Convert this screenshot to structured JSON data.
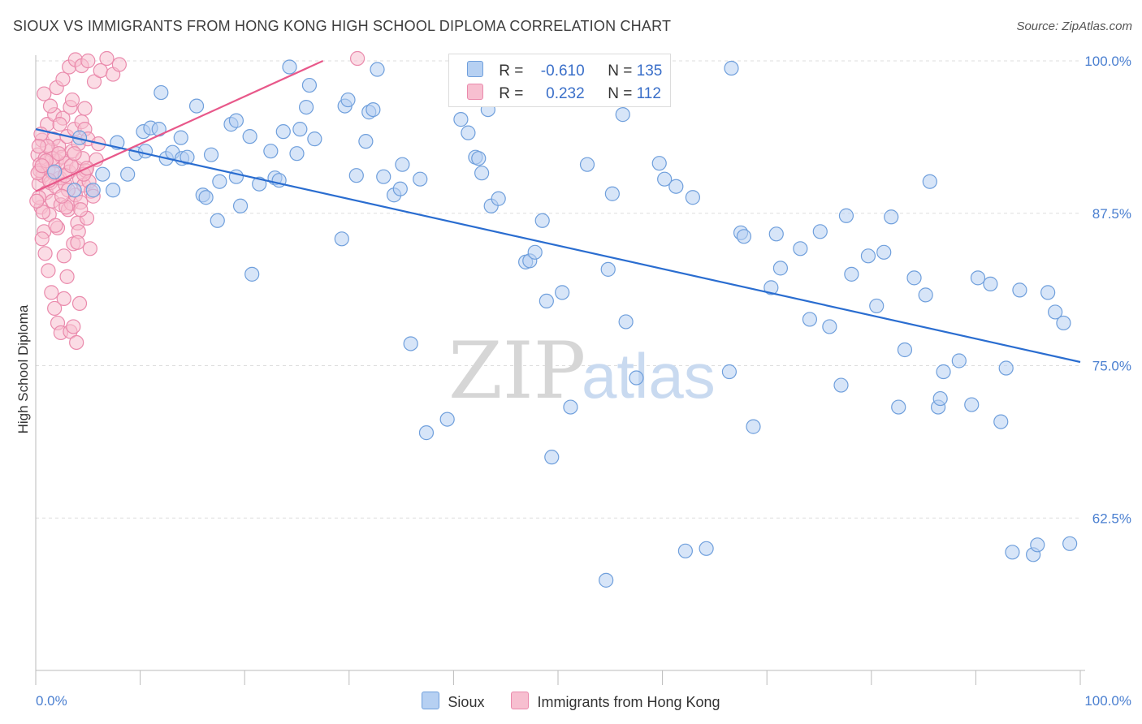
{
  "title": "SIOUX VS IMMIGRANTS FROM HONG KONG HIGH SCHOOL DIPLOMA CORRELATION CHART",
  "source": "Source: ZipAtlas.com",
  "watermark": {
    "zip": "ZIP",
    "atlas": "atlas"
  },
  "colors": {
    "sioux_fill": "#b6d0f2",
    "sioux_stroke": "#6f9fdc",
    "sioux_line": "#2a6dd0",
    "hk_fill": "#f7bfd0",
    "hk_stroke": "#ea8aac",
    "hk_line": "#e8588a",
    "grid": "#dddddd",
    "tick_text": "#4a7fd0"
  },
  "legend": {
    "rows": [
      {
        "r_label": "R =",
        "r_value": "-0.610",
        "n_label": "N =",
        "n_value": "135"
      },
      {
        "r_label": "R =",
        "r_value": "0.232",
        "n_label": "N =",
        "n_value": "112"
      }
    ]
  },
  "bottom_legend": [
    "Sioux",
    "Immigrants from Hong Kong"
  ],
  "chart_data": {
    "type": "scatter",
    "title": "SIOUX VS IMMIGRANTS FROM HONG KONG HIGH SCHOOL DIPLOMA CORRELATION CHART",
    "xlabel": "",
    "ylabel": "High School Diploma",
    "xlim": [
      0,
      100
    ],
    "ylim": [
      50,
      101
    ],
    "x_tick_labels": [
      "0.0%",
      "100.0%"
    ],
    "y_ticks": [
      62.5,
      75.0,
      87.5,
      100.0
    ],
    "y_tick_labels": [
      "62.5%",
      "75.0%",
      "87.5%",
      "100.0%"
    ],
    "grid": true,
    "legend_placement": "top-center",
    "series": [
      {
        "name": "Sioux",
        "r": -0.61,
        "n": 135,
        "trendline": {
          "x": [
            0,
            100
          ],
          "y": [
            94.4,
            75.3
          ]
        },
        "points": [
          [
            1.8,
            90.9
          ],
          [
            3.7,
            89.4
          ],
          [
            4.2,
            93.7
          ],
          [
            5.5,
            89.4
          ],
          [
            6.4,
            90.7
          ],
          [
            7.4,
            89.4
          ],
          [
            7.8,
            93.3
          ],
          [
            8.8,
            90.7
          ],
          [
            9.6,
            92.4
          ],
          [
            10.3,
            94.2
          ],
          [
            10.5,
            92.6
          ],
          [
            11,
            94.5
          ],
          [
            11.8,
            94.4
          ],
          [
            12,
            97.4
          ],
          [
            12.5,
            92.0
          ],
          [
            13.1,
            92.5
          ],
          [
            13.9,
            93.7
          ],
          [
            14,
            92.0
          ],
          [
            14.5,
            92.1
          ],
          [
            15.4,
            96.3
          ],
          [
            16,
            89.0
          ],
          [
            16.3,
            88.8
          ],
          [
            16.8,
            92.3
          ],
          [
            17.4,
            86.9
          ],
          [
            17.6,
            90.1
          ],
          [
            18.7,
            94.8
          ],
          [
            19.2,
            95.1
          ],
          [
            19.2,
            90.5
          ],
          [
            19.6,
            88.1
          ],
          [
            20.5,
            93.8
          ],
          [
            20.7,
            82.5
          ],
          [
            21.4,
            89.9
          ],
          [
            22.5,
            92.6
          ],
          [
            22.9,
            90.4
          ],
          [
            23.3,
            90.2
          ],
          [
            23.7,
            94.2
          ],
          [
            24.3,
            99.5
          ],
          [
            25,
            92.4
          ],
          [
            25.3,
            94.4
          ],
          [
            25.9,
            96.2
          ],
          [
            26.2,
            98.0
          ],
          [
            26.7,
            93.6
          ],
          [
            29.3,
            85.4
          ],
          [
            29.6,
            96.3
          ],
          [
            29.9,
            96.8
          ],
          [
            30.7,
            90.6
          ],
          [
            31.6,
            93.4
          ],
          [
            31.9,
            95.8
          ],
          [
            32.3,
            96.0
          ],
          [
            32.7,
            99.3
          ],
          [
            33.3,
            90.5
          ],
          [
            34.3,
            89.0
          ],
          [
            34.9,
            89.5
          ],
          [
            35.1,
            91.5
          ],
          [
            35.9,
            76.8
          ],
          [
            36.8,
            90.3
          ],
          [
            40.7,
            95.2
          ],
          [
            41.4,
            94.1
          ],
          [
            42.1,
            92.1
          ],
          [
            42.4,
            92.0
          ],
          [
            42.7,
            90.8
          ],
          [
            43.3,
            96.0
          ],
          [
            43.6,
            88.1
          ],
          [
            44.3,
            88.7
          ],
          [
            45.3,
            99.4
          ],
          [
            46.9,
            83.5
          ],
          [
            47.3,
            83.6
          ],
          [
            47.8,
            84.3
          ],
          [
            48.5,
            86.9
          ],
          [
            48.9,
            80.3
          ],
          [
            49.4,
            67.5
          ],
          [
            50.4,
            81.0
          ],
          [
            51.2,
            71.6
          ],
          [
            52.8,
            91.5
          ],
          [
            54.6,
            57.4
          ],
          [
            54.8,
            82.9
          ],
          [
            55.2,
            89.1
          ],
          [
            56.2,
            95.6
          ],
          [
            56.5,
            78.6
          ],
          [
            57.5,
            74.0
          ],
          [
            59.7,
            91.6
          ],
          [
            60.2,
            90.3
          ],
          [
            61.3,
            89.7
          ],
          [
            62.2,
            59.8
          ],
          [
            62.9,
            88.8
          ],
          [
            64.2,
            60.0
          ],
          [
            66.4,
            74.5
          ],
          [
            66.6,
            99.4
          ],
          [
            67.5,
            85.9
          ],
          [
            67.8,
            85.6
          ],
          [
            68.7,
            70.0
          ],
          [
            70.4,
            81.4
          ],
          [
            70.9,
            85.8
          ],
          [
            71.3,
            83.0
          ],
          [
            73.2,
            84.6
          ],
          [
            74.1,
            78.8
          ],
          [
            75.1,
            86.0
          ],
          [
            76.0,
            78.2
          ],
          [
            77.1,
            73.4
          ],
          [
            77.6,
            87.3
          ],
          [
            78.1,
            82.5
          ],
          [
            79.7,
            84.0
          ],
          [
            80.5,
            79.9
          ],
          [
            81.2,
            84.3
          ],
          [
            81.9,
            87.2
          ],
          [
            82.6,
            71.6
          ],
          [
            83.2,
            76.3
          ],
          [
            84.1,
            82.2
          ],
          [
            85.2,
            80.8
          ],
          [
            85.6,
            90.1
          ],
          [
            86.4,
            71.6
          ],
          [
            86.6,
            72.3
          ],
          [
            86.9,
            74.5
          ],
          [
            88.4,
            75.4
          ],
          [
            89.6,
            71.8
          ],
          [
            90.2,
            82.2
          ],
          [
            91.4,
            81.7
          ],
          [
            92.4,
            70.4
          ],
          [
            92.9,
            74.8
          ],
          [
            93.5,
            59.7
          ],
          [
            94.2,
            81.2
          ],
          [
            95.5,
            59.5
          ],
          [
            95.9,
            60.3
          ],
          [
            96.9,
            81.0
          ],
          [
            97.6,
            79.4
          ],
          [
            98.4,
            78.5
          ],
          [
            99.0,
            60.4
          ],
          [
            37.4,
            69.5
          ],
          [
            39.4,
            70.6
          ]
        ]
      },
      {
        "name": "Immigrants from Hong Kong",
        "r": 0.232,
        "n": 112,
        "trendline": {
          "x": [
            0,
            27.5
          ],
          "y": [
            89.3,
            100.0
          ]
        },
        "points": [
          [
            0.2,
            92.3
          ],
          [
            0.3,
            89.9
          ],
          [
            0.4,
            91.5
          ],
          [
            0.5,
            88.0
          ],
          [
            0.6,
            93.5
          ],
          [
            0.7,
            90.6
          ],
          [
            0.8,
            86.0
          ],
          [
            0.9,
            92.0
          ],
          [
            1.0,
            89.2
          ],
          [
            1.1,
            94.8
          ],
          [
            1.2,
            91.1
          ],
          [
            1.3,
            87.4
          ],
          [
            1.4,
            90.0
          ],
          [
            1.5,
            92.7
          ],
          [
            1.6,
            88.5
          ],
          [
            1.7,
            93.6
          ],
          [
            1.8,
            95.6
          ],
          [
            1.9,
            89.7
          ],
          [
            2.0,
            91.8
          ],
          [
            2.1,
            86.3
          ],
          [
            2.2,
            93.0
          ],
          [
            2.3,
            90.4
          ],
          [
            2.4,
            88.2
          ],
          [
            2.5,
            92.1
          ],
          [
            2.6,
            95.3
          ],
          [
            2.7,
            84.0
          ],
          [
            2.8,
            89.9
          ],
          [
            2.9,
            91.6
          ],
          [
            3.0,
            93.8
          ],
          [
            3.1,
            87.8
          ],
          [
            3.2,
            90.9
          ],
          [
            3.3,
            96.2
          ],
          [
            3.4,
            88.3
          ],
          [
            3.5,
            92.6
          ],
          [
            3.6,
            85.0
          ],
          [
            3.7,
            94.4
          ],
          [
            3.8,
            89.0
          ],
          [
            3.9,
            91.2
          ],
          [
            4.0,
            86.7
          ],
          [
            4.1,
            93.2
          ],
          [
            4.2,
            90.3
          ],
          [
            4.3,
            88.4
          ],
          [
            4.4,
            95.0
          ],
          [
            4.5,
            92.0
          ],
          [
            4.6,
            89.8
          ],
          [
            4.7,
            94.4
          ],
          [
            4.8,
            91.0
          ],
          [
            4.9,
            87.1
          ],
          [
            5.0,
            93.6
          ],
          [
            5.1,
            90.1
          ],
          [
            0.3,
            88.8
          ],
          [
            0.6,
            85.4
          ],
          [
            0.9,
            84.2
          ],
          [
            1.2,
            82.8
          ],
          [
            1.5,
            81.0
          ],
          [
            1.8,
            79.7
          ],
          [
            2.1,
            78.5
          ],
          [
            2.4,
            77.7
          ],
          [
            2.7,
            80.5
          ],
          [
            3.0,
            82.3
          ],
          [
            3.3,
            77.8
          ],
          [
            3.6,
            78.2
          ],
          [
            3.9,
            76.9
          ],
          [
            4.2,
            80.1
          ],
          [
            0.8,
            97.3
          ],
          [
            1.4,
            96.3
          ],
          [
            2.0,
            97.8
          ],
          [
            2.6,
            98.5
          ],
          [
            3.2,
            99.5
          ],
          [
            3.8,
            100.1
          ],
          [
            4.4,
            99.6
          ],
          [
            5.0,
            100.0
          ],
          [
            5.6,
            98.3
          ],
          [
            6.2,
            99.2
          ],
          [
            6.8,
            100.2
          ],
          [
            7.4,
            98.9
          ],
          [
            8.0,
            99.7
          ],
          [
            1.1,
            93.0
          ],
          [
            2.3,
            94.8
          ],
          [
            3.5,
            96.8
          ],
          [
            4.7,
            96.1
          ],
          [
            0.5,
            94.0
          ],
          [
            1.7,
            90.8
          ],
          [
            2.9,
            88.0
          ],
          [
            4.1,
            86.0
          ],
          [
            5.3,
            89.3
          ],
          [
            0.4,
            91.0
          ],
          [
            1.6,
            92.0
          ],
          [
            2.8,
            90.6
          ],
          [
            4.0,
            85.1
          ],
          [
            5.2,
            84.6
          ],
          [
            0.7,
            87.6
          ],
          [
            1.9,
            86.5
          ],
          [
            3.1,
            89.4
          ],
          [
            4.3,
            87.8
          ],
          [
            5.5,
            88.9
          ],
          [
            0.2,
            90.8
          ],
          [
            1.0,
            91.8
          ],
          [
            2.2,
            92.4
          ],
          [
            3.4,
            91.4
          ],
          [
            4.6,
            90.7
          ],
          [
            5.8,
            91.9
          ],
          [
            30.8,
            100.2
          ],
          [
            0.1,
            88.5
          ],
          [
            0.3,
            93.0
          ],
          [
            0.6,
            91.4
          ],
          [
            1.3,
            90.2
          ],
          [
            2.5,
            88.9
          ],
          [
            3.7,
            92.4
          ],
          [
            4.9,
            91.2
          ],
          [
            6.0,
            93.2
          ]
        ]
      }
    ]
  }
}
